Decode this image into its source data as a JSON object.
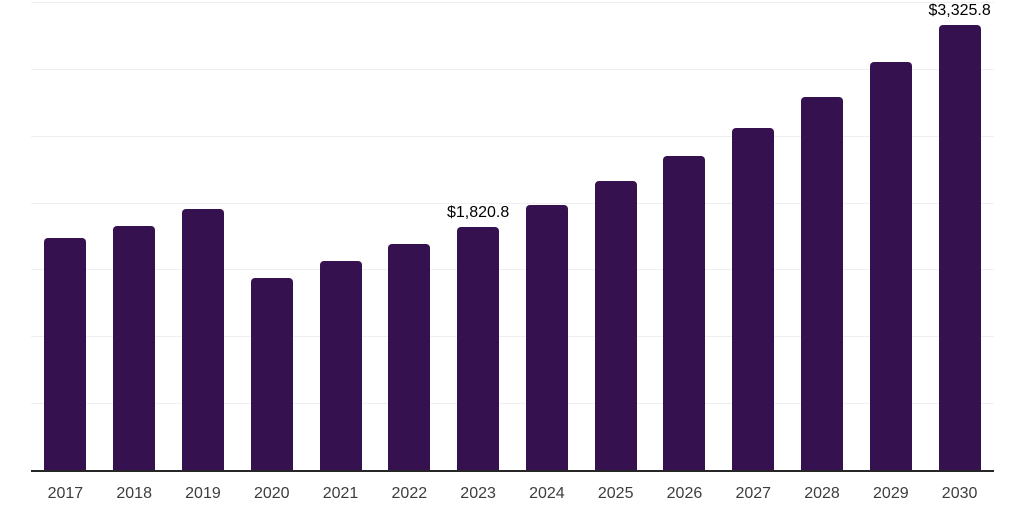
{
  "chart_style": {
    "bar_color": "#351150",
    "grid_color": "#f0eef2",
    "axis_line_color": "#262626",
    "data_label_color": "#000000",
    "tick_label_color": "#3d3d3d",
    "background": "#ffffff"
  },
  "chart_data": {
    "type": "bar",
    "title": "",
    "xlabel": "",
    "ylabel": "",
    "categories": [
      "2017",
      "2018",
      "2019",
      "2020",
      "2021",
      "2022",
      "2023",
      "2024",
      "2025",
      "2026",
      "2027",
      "2028",
      "2029",
      "2030"
    ],
    "values": [
      1735,
      1825,
      1955,
      1435,
      1560,
      1690,
      1820.8,
      1985,
      2160,
      2345,
      2560,
      2790,
      3050,
      3325.8
    ],
    "data_labels": {
      "2023": "$1,820.8",
      "2030": "$3,325.8"
    },
    "ylim": [
      0,
      3500
    ],
    "grid_step": 500,
    "grid": "horizontal",
    "y_axis_tick_labels_visible": false,
    "legend_position": "none"
  }
}
